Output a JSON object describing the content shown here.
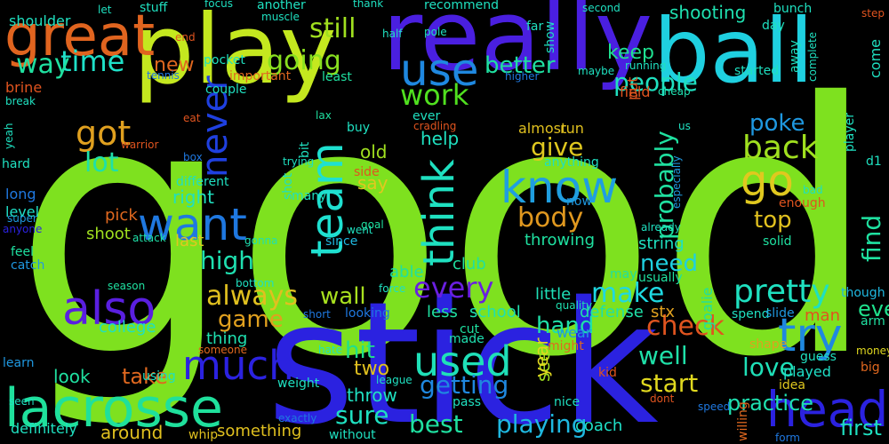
{
  "background": "#000000",
  "words": [
    {
      "text": "good",
      "color": "#7ee11f"
    },
    {
      "text": "stick",
      "color": "#2b22e0"
    },
    {
      "text": "really",
      "color": "#4a1fe0"
    },
    {
      "text": "ball",
      "color": "#1fd0e0"
    },
    {
      "text": "play",
      "color": "#c4e81f"
    },
    {
      "text": "great",
      "color": "#e0641f"
    },
    {
      "text": "lacrosse",
      "color": "#1fe09c"
    },
    {
      "text": "head",
      "color": "#2b22e0"
    },
    {
      "text": "know",
      "color": "#1f9ee0"
    },
    {
      "text": "use",
      "color": "#1f88e0"
    },
    {
      "text": "much",
      "color": "#2b22e0"
    },
    {
      "text": "used",
      "color": "#1fe0b8"
    },
    {
      "text": "also",
      "color": "#5a1fe0"
    },
    {
      "text": "want",
      "color": "#1f78e0"
    },
    {
      "text": "try",
      "color": "#1f88e0"
    },
    {
      "text": "go",
      "color": "#e0c81f"
    },
    {
      "text": "team",
      "color": "#1fe0d0"
    },
    {
      "text": "think",
      "color": "#1fe0c0"
    },
    {
      "text": "never",
      "color": "#1f40e0"
    },
    {
      "text": "time",
      "color": "#1fe0c8"
    },
    {
      "text": "going",
      "color": "#88e01f"
    },
    {
      "text": "still",
      "color": "#a0e01f"
    },
    {
      "text": "way",
      "color": "#1fe0a0"
    },
    {
      "text": "got",
      "color": "#e0a01f"
    },
    {
      "text": "lot",
      "color": "#1fe0a8"
    },
    {
      "text": "back",
      "color": "#a0e01f"
    },
    {
      "text": "work",
      "color": "#50e01f"
    },
    {
      "text": "people",
      "color": "#1fe0c0"
    },
    {
      "text": "better",
      "color": "#1fe0a0"
    },
    {
      "text": "new",
      "color": "#e0681f"
    },
    {
      "text": "keep",
      "color": "#1fe090"
    },
    {
      "text": "every",
      "color": "#6a1fe0"
    },
    {
      "text": "make",
      "color": "#1fd8e0"
    },
    {
      "text": "pretty",
      "color": "#1fe0c0"
    },
    {
      "text": "always",
      "color": "#e0c01f"
    },
    {
      "text": "high",
      "color": "#1fe0b0"
    },
    {
      "text": "body",
      "color": "#e0981f"
    },
    {
      "text": "give",
      "color": "#e0c81f"
    },
    {
      "text": "probably",
      "color": "#1fe0a0"
    },
    {
      "text": "find",
      "color": "#1fe0a0"
    },
    {
      "text": "check",
      "color": "#e0541f"
    },
    {
      "text": "hit",
      "color": "#1fe08c"
    },
    {
      "text": "two",
      "color": "#e0c01f"
    },
    {
      "text": "sure",
      "color": "#1fe0c0"
    },
    {
      "text": "best",
      "color": "#1fe0a0"
    },
    {
      "text": "playing",
      "color": "#1fb8e0"
    },
    {
      "text": "getting",
      "color": "#1f88e0"
    },
    {
      "text": "well",
      "color": "#1fe0a8"
    },
    {
      "text": "love",
      "color": "#1fe0b8"
    },
    {
      "text": "start",
      "color": "#e0d81f"
    },
    {
      "text": "take",
      "color": "#e0681f"
    },
    {
      "text": "game",
      "color": "#e0a01f"
    },
    {
      "text": "wall",
      "color": "#a8e01f"
    },
    {
      "text": "need",
      "color": "#1fd0e0"
    },
    {
      "text": "top",
      "color": "#e0c01f"
    },
    {
      "text": "poke",
      "color": "#1f98e0"
    },
    {
      "text": "first",
      "color": "#1fe0c0"
    },
    {
      "text": "practice",
      "color": "#1fe0b0"
    },
    {
      "text": "hand",
      "color": "#1fe0a8"
    },
    {
      "text": "even",
      "color": "#1fe08c"
    },
    {
      "text": "look",
      "color": "#1fe0a0"
    },
    {
      "text": "around",
      "color": "#e0c01f"
    },
    {
      "text": "right",
      "color": "#1fe0c0"
    },
    {
      "text": "help",
      "color": "#1fe0c0"
    },
    {
      "text": "old",
      "color": "#a0e01f"
    },
    {
      "text": "say",
      "color": "#e0c81f"
    },
    {
      "text": "shooting",
      "color": "#1fe0b0"
    },
    {
      "text": "shoot",
      "color": "#a0e01f"
    },
    {
      "text": "last",
      "color": "#e0c81f"
    },
    {
      "text": "pick",
      "color": "#e0681f"
    },
    {
      "text": "string",
      "color": "#1fe0c0"
    },
    {
      "text": "throwing",
      "color": "#1fe0a0"
    },
    {
      "text": "school",
      "color": "#1fe0b0"
    },
    {
      "text": "less",
      "color": "#1fe0a0"
    },
    {
      "text": "little",
      "color": "#1fe0b8"
    },
    {
      "text": "see",
      "color": "#a0e01f"
    },
    {
      "text": "year",
      "color": "#e0d81f"
    },
    {
      "text": "college",
      "color": "#1fe0c0"
    },
    {
      "text": "thing",
      "color": "#1fe0b0"
    },
    {
      "text": "club",
      "color": "#1fe0a0"
    },
    {
      "text": "coach",
      "color": "#1fe0c8"
    },
    {
      "text": "able",
      "color": "#1fe0a0"
    },
    {
      "text": "defense",
      "color": "#1fe0a8"
    },
    {
      "text": "stx",
      "color": "#e0a01f"
    },
    {
      "text": "throw",
      "color": "#1fe0c0"
    },
    {
      "text": "shoulder",
      "color": "#1fe0c0"
    },
    {
      "text": "brine",
      "color": "#e0541f"
    },
    {
      "text": "long",
      "color": "#1f78e0"
    },
    {
      "text": "level",
      "color": "#1fe0c8"
    },
    {
      "text": "hard",
      "color": "#1fe0c0"
    },
    {
      "text": "feel",
      "color": "#1fe0a0"
    },
    {
      "text": "catch",
      "color": "#1f98e0"
    },
    {
      "text": "learn",
      "color": "#1f98e0"
    },
    {
      "text": "super",
      "color": "#1f98e0"
    },
    {
      "text": "anyone",
      "color": "#2b22e0"
    },
    {
      "text": "seen",
      "color": "#1fe0c0"
    },
    {
      "text": "definitely",
      "color": "#1fe0c0"
    },
    {
      "text": "season",
      "color": "#1fe0a0"
    },
    {
      "text": "whip",
      "color": "#e0c01f"
    },
    {
      "text": "something",
      "color": "#e0c01f"
    },
    {
      "text": "without",
      "color": "#1fe0c0"
    },
    {
      "text": "someone",
      "color": "#e0681f"
    },
    {
      "text": "weight",
      "color": "#1fe0c0"
    },
    {
      "text": "using",
      "color": "#1fe0c0"
    },
    {
      "text": "made",
      "color": "#1fe0b0"
    },
    {
      "text": "cut",
      "color": "#1fe0a0"
    },
    {
      "text": "pass",
      "color": "#1fe0c0"
    },
    {
      "text": "nice",
      "color": "#1fe0c0"
    },
    {
      "text": "kid",
      "color": "#e0541f"
    },
    {
      "text": "might",
      "color": "#e0681f"
    },
    {
      "text": "wear",
      "color": "#1f98e0"
    },
    {
      "text": "quality",
      "color": "#1fe0b0"
    },
    {
      "text": "may",
      "color": "#1fe0a0"
    },
    {
      "text": "goalie",
      "color": "#1fe0a0"
    },
    {
      "text": "usually",
      "color": "#1fe0a0"
    },
    {
      "text": "spend",
      "color": "#1fe0c0"
    },
    {
      "text": "slide",
      "color": "#1f98e0"
    },
    {
      "text": "man",
      "color": "#e0541f"
    },
    {
      "text": "arm",
      "color": "#1fe0a0"
    },
    {
      "text": "though",
      "color": "#1fb8e0"
    },
    {
      "text": "shape",
      "color": "#e0a01f"
    },
    {
      "text": "guess",
      "color": "#1fe0c0"
    },
    {
      "text": "money",
      "color": "#e0d81f"
    },
    {
      "text": "big",
      "color": "#e0681f"
    },
    {
      "text": "idea",
      "color": "#e0c81f"
    },
    {
      "text": "dont",
      "color": "#e0541f"
    },
    {
      "text": "speed",
      "color": "#1f78e0"
    },
    {
      "text": "form",
      "color": "#1f78e0"
    },
    {
      "text": "willing",
      "color": "#e0681f"
    },
    {
      "text": "played",
      "color": "#1fe0c8"
    },
    {
      "text": "solid",
      "color": "#1fe0a0"
    },
    {
      "text": "already",
      "color": "#1fe0c0"
    },
    {
      "text": "now",
      "color": "#1f98e0"
    },
    {
      "text": "went",
      "color": "#1fe0c0"
    },
    {
      "text": "since",
      "color": "#1fb8e0"
    },
    {
      "text": "gonna",
      "color": "#1fe0b0"
    },
    {
      "text": "attack",
      "color": "#1fe0a8"
    },
    {
      "text": "goal",
      "color": "#1fe0a0"
    },
    {
      "text": "many",
      "color": "#1fe0c0"
    },
    {
      "text": "shot",
      "color": "#1fe0c0"
    },
    {
      "text": "bit",
      "color": "#1fe0c0"
    },
    {
      "text": "trying",
      "color": "#1fe0c0"
    },
    {
      "text": "buy",
      "color": "#1fe0c0"
    },
    {
      "text": "ever",
      "color": "#1fe0c0"
    },
    {
      "text": "lax",
      "color": "#1fe0a0"
    },
    {
      "text": "least",
      "color": "#1fe0a0"
    },
    {
      "text": "cradling",
      "color": "#e0541f"
    },
    {
      "text": "almost",
      "color": "#e0c01f"
    },
    {
      "text": "run",
      "color": "#e0c01f"
    },
    {
      "text": "side",
      "color": "#e0541f"
    },
    {
      "text": "anything",
      "color": "#1fe0c0"
    },
    {
      "text": "put",
      "color": "#e0541f"
    },
    {
      "text": "field",
      "color": "#e0541f"
    },
    {
      "text": "cheap",
      "color": "#1fe0b0"
    },
    {
      "text": "us",
      "color": "#1fe0c0"
    },
    {
      "text": "especially",
      "color": "#1f98e0"
    },
    {
      "text": "enough",
      "color": "#e0541f"
    },
    {
      "text": "bad",
      "color": "#1fe0c0"
    },
    {
      "text": "d1",
      "color": "#1fe0c0"
    },
    {
      "text": "player",
      "color": "#1fe0c0"
    },
    {
      "text": "come",
      "color": "#1fe0c0"
    },
    {
      "text": "complete",
      "color": "#1fe0c0"
    },
    {
      "text": "away",
      "color": "#1fe0c0"
    },
    {
      "text": "started",
      "color": "#1fe0c0"
    },
    {
      "text": "day",
      "color": "#1fe0c0"
    },
    {
      "text": "bunch",
      "color": "#1fe0c0"
    },
    {
      "text": "step",
      "color": "#e0541f"
    },
    {
      "text": "second",
      "color": "#1fe0c0"
    },
    {
      "text": "running",
      "color": "#1fe0c0"
    },
    {
      "text": "maybe",
      "color": "#1fe0c0"
    },
    {
      "text": "higher",
      "color": "#1f78e0"
    },
    {
      "text": "far",
      "color": "#1fe0c0"
    },
    {
      "text": "show",
      "color": "#1fe0c0"
    },
    {
      "text": "pole",
      "color": "#1fe0c0"
    },
    {
      "text": "half",
      "color": "#1fe0c0"
    },
    {
      "text": "recommend",
      "color": "#1fe0c0"
    },
    {
      "text": "thank",
      "color": "#1fe0c0"
    },
    {
      "text": "another",
      "color": "#1fe0c0"
    },
    {
      "text": "muscle",
      "color": "#1fe0c0"
    },
    {
      "text": "focus",
      "color": "#1fe0c0"
    },
    {
      "text": "stuff",
      "color": "#1fe0c0"
    },
    {
      "text": "let",
      "color": "#1fe0c0"
    },
    {
      "text": "end",
      "color": "#e0541f"
    },
    {
      "text": "pocket",
      "color": "#1fe0c0"
    },
    {
      "text": "important",
      "color": "#e0681f"
    },
    {
      "text": "couple",
      "color": "#1fe0c0"
    },
    {
      "text": "tennis",
      "color": "#1f78e0"
    },
    {
      "text": "break",
      "color": "#1fe0c0"
    },
    {
      "text": "yeah",
      "color": "#1fe0c0"
    },
    {
      "text": "eat",
      "color": "#e0541f"
    },
    {
      "text": "warrior",
      "color": "#e0541f"
    },
    {
      "text": "box",
      "color": "#1f78e0"
    },
    {
      "text": "different",
      "color": "#1fe0c0"
    },
    {
      "text": "bottom",
      "color": "#1fe0c0"
    },
    {
      "text": "force",
      "color": "#1fe0c0"
    },
    {
      "text": "short",
      "color": "#1f78e0"
    },
    {
      "text": "looking",
      "color": "#1f78e0"
    },
    {
      "text": "hate",
      "color": "#1fe0c0"
    },
    {
      "text": "league",
      "color": "#1fe0c0"
    },
    {
      "text": "exactly",
      "color": "#1f78e0"
    }
  ]
}
